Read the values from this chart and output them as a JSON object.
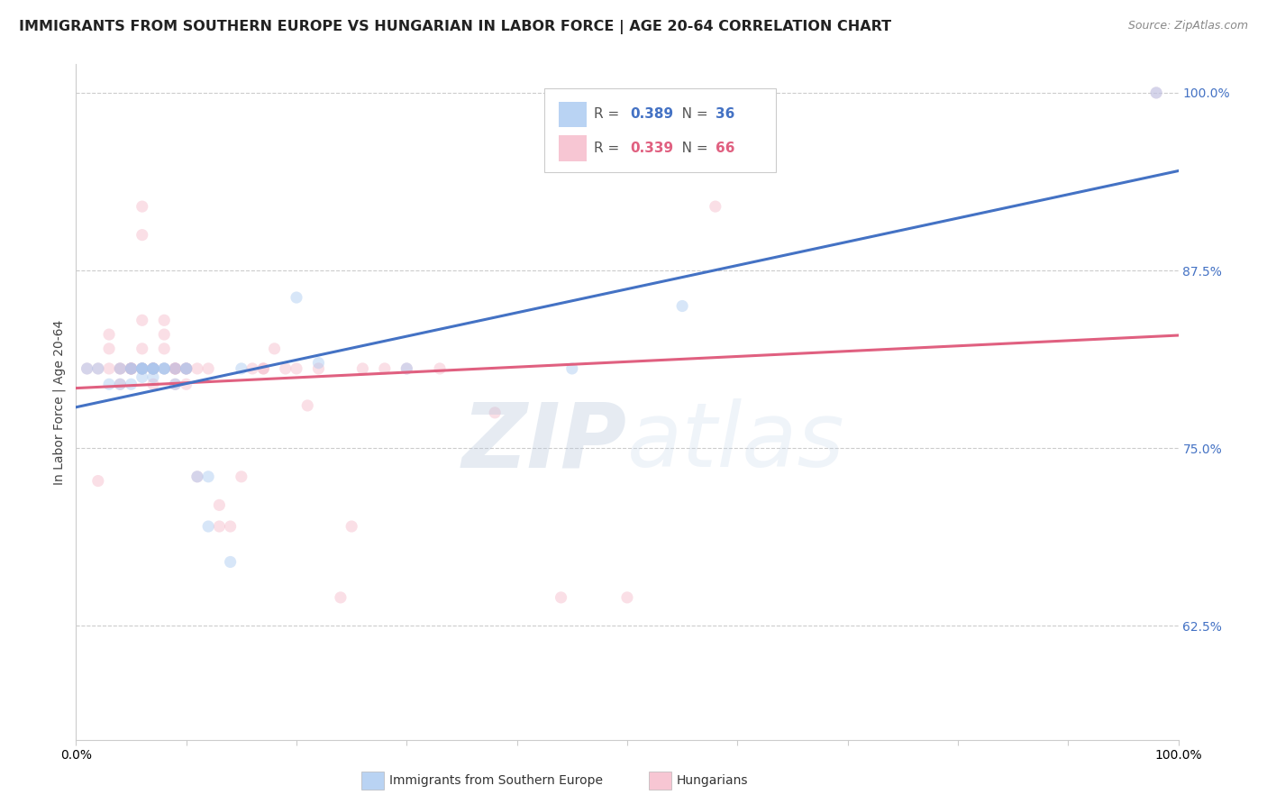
{
  "title": "IMMIGRANTS FROM SOUTHERN EUROPE VS HUNGARIAN IN LABOR FORCE | AGE 20-64 CORRELATION CHART",
  "source": "Source: ZipAtlas.com",
  "ylabel": "In Labor Force | Age 20-64",
  "xlim": [
    0.0,
    1.0
  ],
  "ylim": [
    0.545,
    1.02
  ],
  "yticks_pct": [
    62.5,
    75.0,
    87.5,
    100.0
  ],
  "blue_R": 0.389,
  "blue_N": 36,
  "pink_R": 0.339,
  "pink_N": 66,
  "blue_color": "#a8c8f0",
  "pink_color": "#f5b8c8",
  "blue_line_color": "#4472c4",
  "pink_line_color": "#e06080",
  "blue_x": [
    0.01,
    0.02,
    0.03,
    0.04,
    0.04,
    0.05,
    0.05,
    0.05,
    0.06,
    0.06,
    0.06,
    0.06,
    0.06,
    0.07,
    0.07,
    0.07,
    0.07,
    0.07,
    0.08,
    0.08,
    0.08,
    0.09,
    0.09,
    0.1,
    0.1,
    0.11,
    0.12,
    0.12,
    0.14,
    0.15,
    0.2,
    0.22,
    0.3,
    0.45,
    0.55,
    0.98
  ],
  "blue_y": [
    0.806,
    0.806,
    0.795,
    0.795,
    0.806,
    0.806,
    0.806,
    0.795,
    0.806,
    0.806,
    0.806,
    0.806,
    0.8,
    0.806,
    0.806,
    0.806,
    0.8,
    0.806,
    0.806,
    0.806,
    0.806,
    0.806,
    0.795,
    0.806,
    0.806,
    0.73,
    0.695,
    0.73,
    0.67,
    0.806,
    0.856,
    0.81,
    0.806,
    0.806,
    0.85,
    1.0
  ],
  "pink_x": [
    0.01,
    0.02,
    0.02,
    0.03,
    0.03,
    0.03,
    0.04,
    0.04,
    0.04,
    0.05,
    0.05,
    0.05,
    0.05,
    0.05,
    0.06,
    0.06,
    0.06,
    0.06,
    0.06,
    0.06,
    0.06,
    0.07,
    0.07,
    0.07,
    0.07,
    0.07,
    0.07,
    0.08,
    0.08,
    0.08,
    0.08,
    0.09,
    0.09,
    0.09,
    0.09,
    0.09,
    0.1,
    0.1,
    0.1,
    0.1,
    0.11,
    0.11,
    0.12,
    0.13,
    0.13,
    0.14,
    0.15,
    0.16,
    0.17,
    0.17,
    0.18,
    0.19,
    0.2,
    0.21,
    0.22,
    0.24,
    0.25,
    0.26,
    0.28,
    0.3,
    0.33,
    0.38,
    0.44,
    0.5,
    0.58,
    0.98
  ],
  "pink_y": [
    0.806,
    0.727,
    0.806,
    0.806,
    0.82,
    0.83,
    0.806,
    0.806,
    0.795,
    0.806,
    0.806,
    0.806,
    0.806,
    0.806,
    0.806,
    0.82,
    0.92,
    0.9,
    0.806,
    0.806,
    0.84,
    0.806,
    0.806,
    0.806,
    0.806,
    0.806,
    0.795,
    0.806,
    0.82,
    0.84,
    0.83,
    0.806,
    0.806,
    0.806,
    0.806,
    0.795,
    0.806,
    0.806,
    0.795,
    0.806,
    0.806,
    0.73,
    0.806,
    0.695,
    0.71,
    0.695,
    0.73,
    0.806,
    0.806,
    0.806,
    0.82,
    0.806,
    0.806,
    0.78,
    0.806,
    0.645,
    0.695,
    0.806,
    0.806,
    0.806,
    0.806,
    0.775,
    0.645,
    0.645,
    0.92,
    1.0
  ],
  "grid_color": "#cccccc",
  "background_color": "#ffffff",
  "title_fontsize": 11.5,
  "ylabel_fontsize": 10,
  "tick_fontsize": 10,
  "marker_size": 90,
  "marker_alpha": 0.45,
  "line_width": 2.2
}
